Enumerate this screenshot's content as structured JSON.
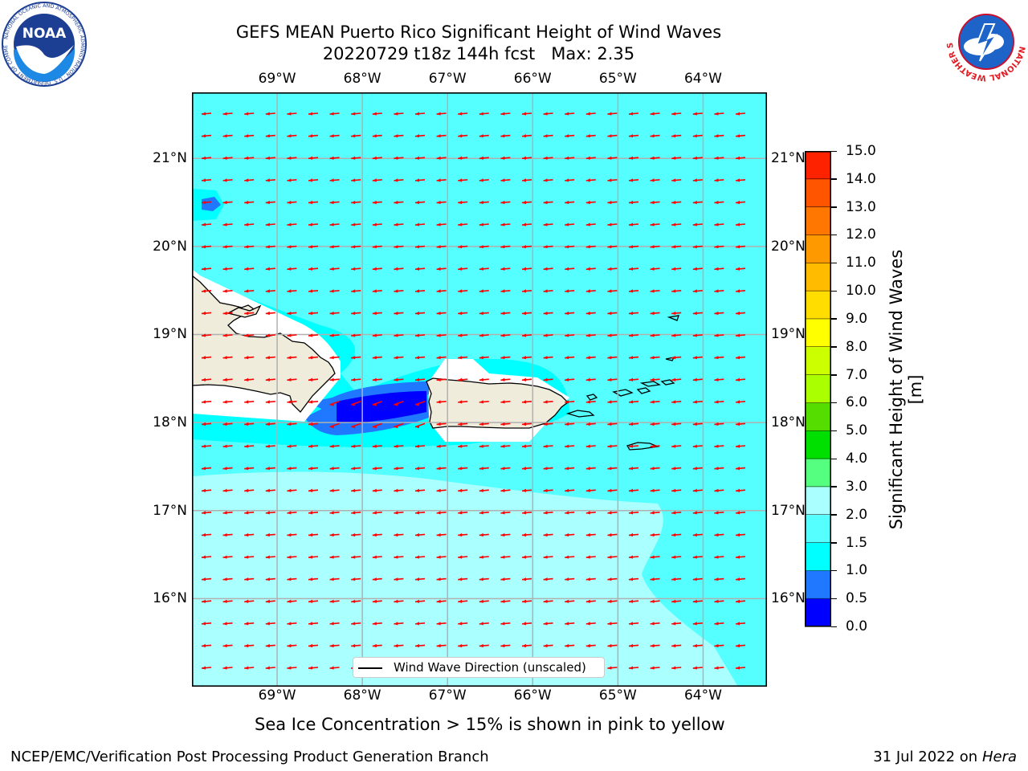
{
  "header": {
    "title_line1": "GEFS MEAN Puerto Rico Significant Height of Wind Waves",
    "title_line2": "20220729 t18z 144h fcst   Max: 2.35"
  },
  "logos": {
    "left": "NOAA logo",
    "left_text": "NOAA",
    "left_ring_text": "NATIONAL OCEANIC AND ATMOSPHERIC ADMINISTRATION · U.S. DEPARTMENT OF COMMERCE",
    "right": "National Weather Service logo",
    "right_ring_text": "NATIONAL WEATHER SERVICE"
  },
  "map": {
    "lon_range": [
      -70.0,
      -63.25
    ],
    "lat_range": [
      15.0,
      21.75
    ],
    "lon_ticks": [
      "69°W",
      "68°W",
      "67°W",
      "66°W",
      "65°W",
      "64°W"
    ],
    "lon_values": [
      -69,
      -68,
      -67,
      -66,
      -65,
      -64
    ],
    "lat_ticks": [
      "21°N",
      "20°N",
      "19°N",
      "18°N",
      "17°N",
      "16°N"
    ],
    "lat_values": [
      21,
      20,
      19,
      18,
      17,
      16
    ],
    "grid": true,
    "land_color": "#efecdc",
    "arrow_color": "#ff0000",
    "wave_direction": "toward west (easterly trade winds)"
  },
  "colorbar": {
    "title": "Significant Height of Wind Waves [m]",
    "labels": [
      "15.0",
      "14.0",
      "13.0",
      "12.0",
      "11.0",
      "10.0",
      "9.0",
      "8.0",
      "7.0",
      "6.0",
      "5.0",
      "4.0",
      "3.0",
      "2.0",
      "1.5",
      "1.0",
      "0.5",
      "0.0"
    ],
    "bounds": [
      0.0,
      0.5,
      1.0,
      1.5,
      2.0,
      3.0,
      4.0,
      5.0,
      6.0,
      7.0,
      8.0,
      9.0,
      10.0,
      11.0,
      12.0,
      13.0,
      14.0,
      15.0
    ],
    "colors": [
      "#0000ff",
      "#1f78ff",
      "#00ffff",
      "#55ffff",
      "#aaffff",
      "#55ff7f",
      "#00e000",
      "#55dd00",
      "#aaff00",
      "#ccff00",
      "#ffff00",
      "#ffdd00",
      "#ffbb00",
      "#ff9900",
      "#ff7700",
      "#ff5500",
      "#ff2200"
    ]
  },
  "legend": {
    "label": "Wind Wave Direction (unscaled)"
  },
  "notes": {
    "ice": "Sea Ice Concentration > 15% is shown in pink to yellow"
  },
  "footer": {
    "left": "NCEP/EMC/Verification Post Processing Product Generation Branch",
    "right_date": "31 Jul 2022 on ",
    "right_system": "Hera"
  }
}
